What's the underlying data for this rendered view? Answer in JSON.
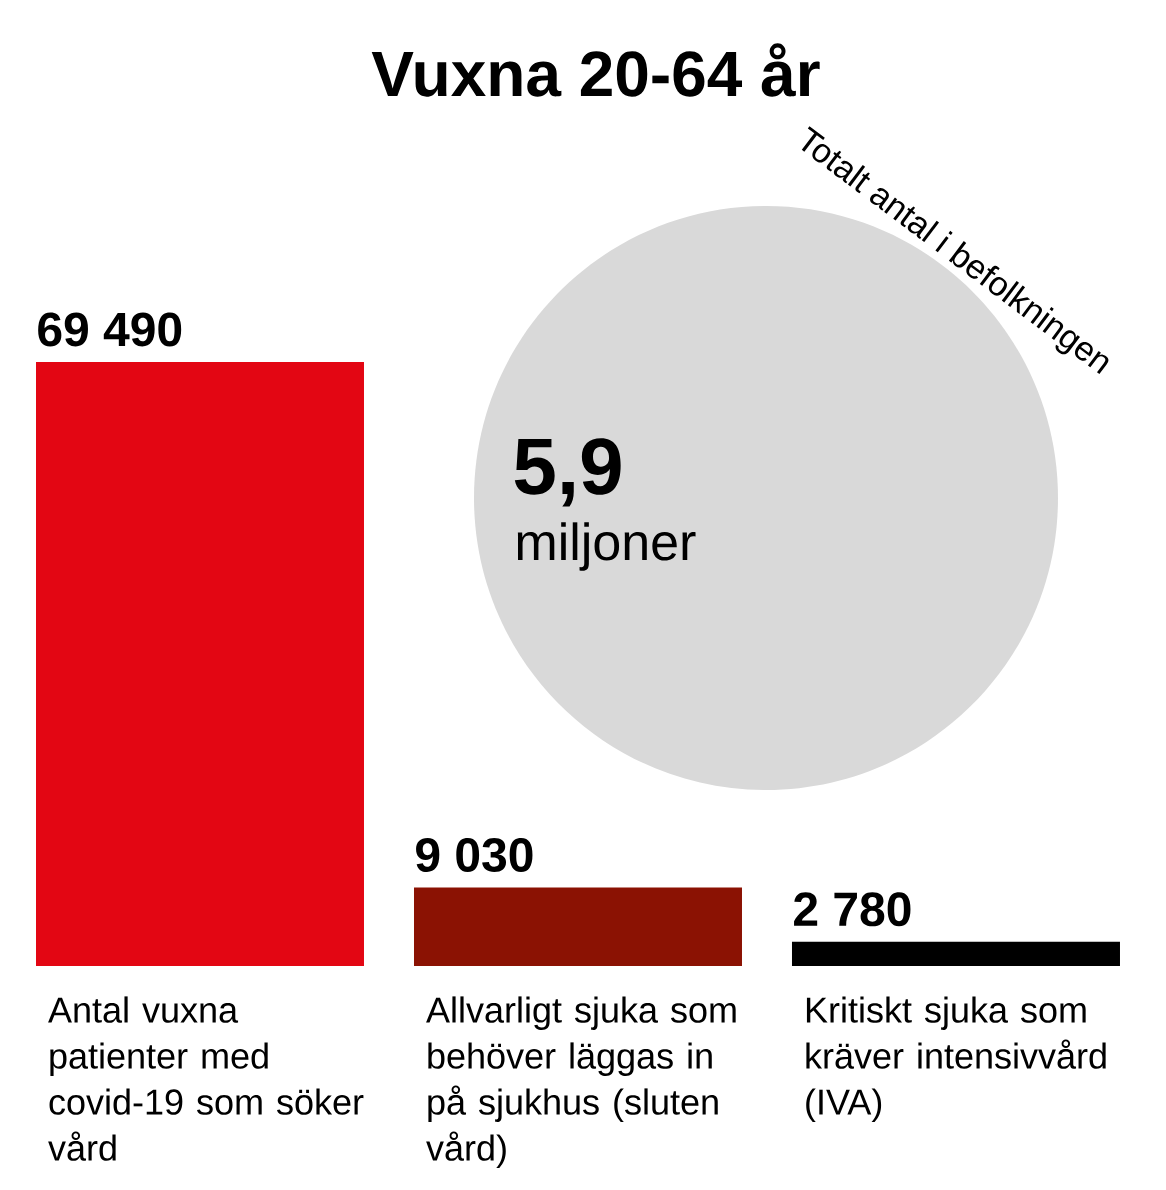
{
  "chart_data": {
    "type": "bar",
    "title": "Vuxna 20-64 år",
    "categories": [
      "Antal vuxna patienter med covid-19 som söker vård",
      "Allvarligt sjuka som behöver läggas in på sjukhus (sluten vård)",
      "Kritiskt sjuka som kräver intensivvård (IVA)"
    ],
    "values": [
      69490,
      9030,
      2780
    ],
    "colors": [
      "#e30613",
      "#8b1203",
      "#000000"
    ],
    "value_labels": [
      "69 490",
      "9 030",
      "2 780"
    ],
    "annotations": [
      "Totalt antal i befolkningen",
      "5,9",
      "miljoner"
    ]
  }
}
